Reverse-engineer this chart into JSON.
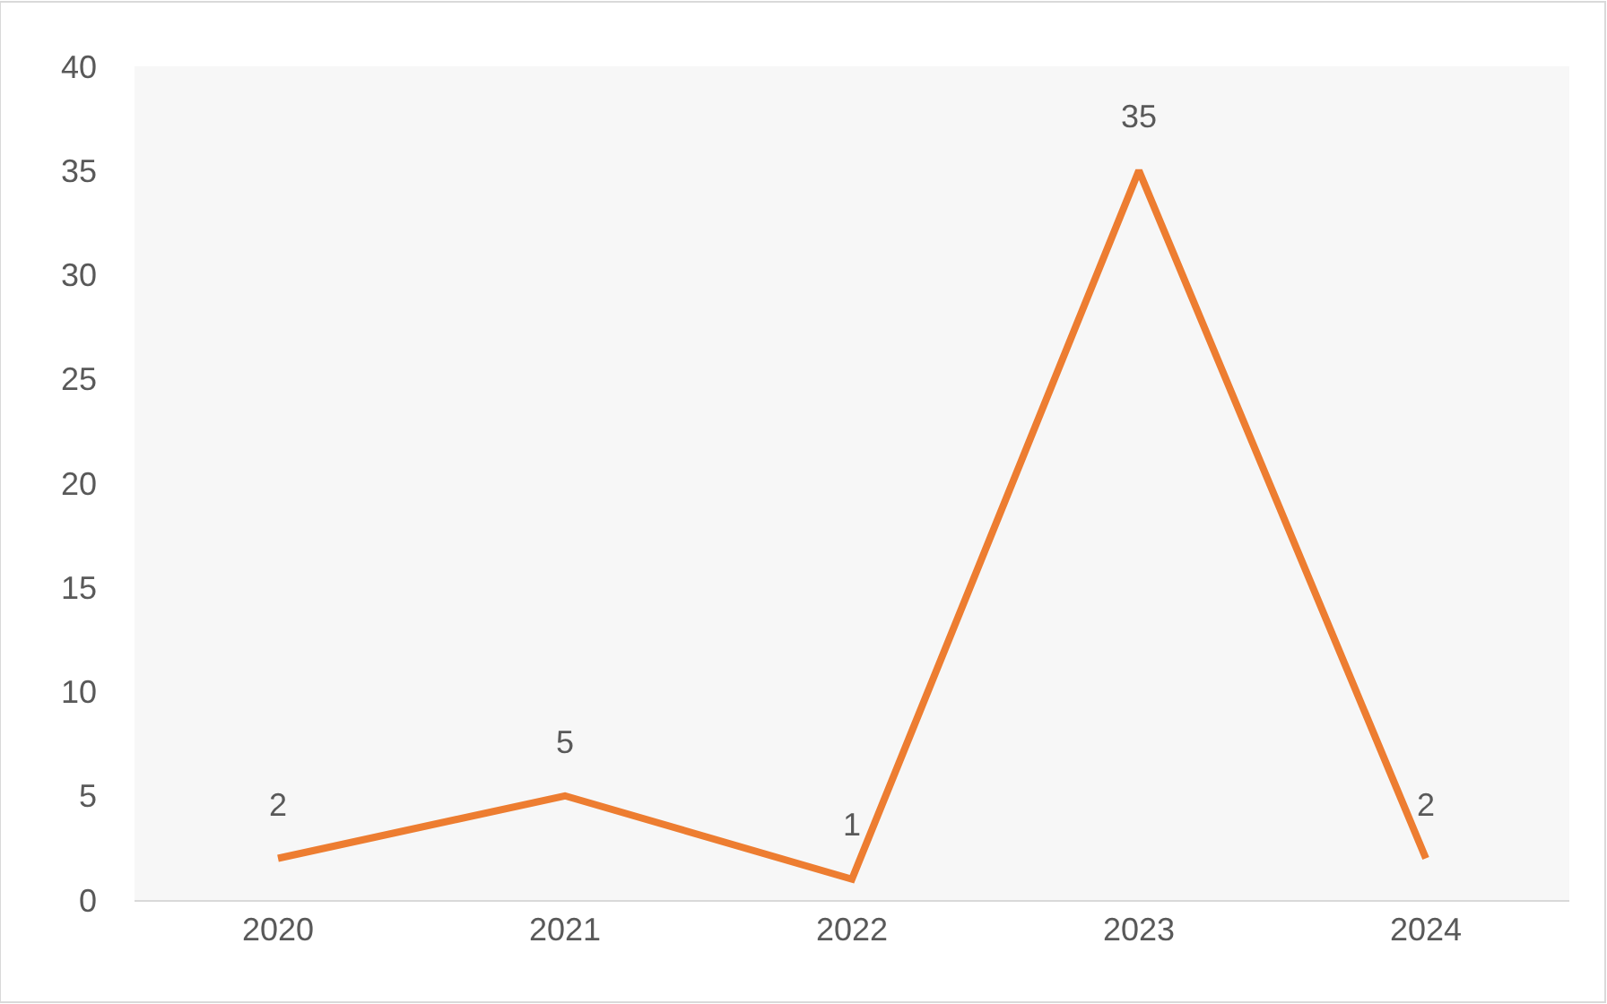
{
  "chart_data": {
    "type": "line",
    "categories": [
      "2020",
      "2021",
      "2022",
      "2023",
      "2024"
    ],
    "series": [
      {
        "color": "#ed7d31",
        "values": [
          2,
          5,
          1,
          35,
          2
        ]
      }
    ],
    "ylim": [
      0,
      40
    ],
    "yticks": [
      0,
      5,
      10,
      15,
      20,
      25,
      30,
      35,
      40
    ],
    "data_labels": true,
    "marker": "none",
    "line_style": "solid"
  }
}
